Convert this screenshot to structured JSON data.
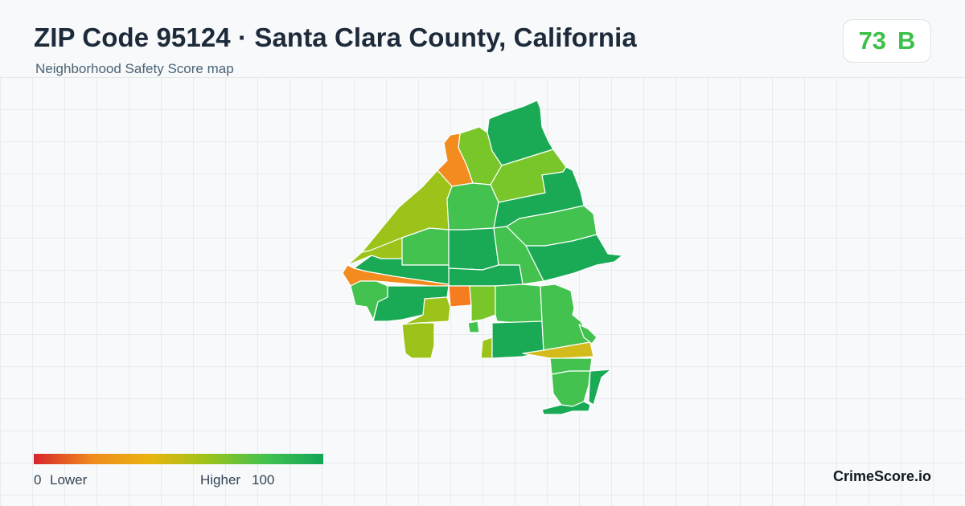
{
  "header": {
    "title": "ZIP Code 95124 · Santa Clara County, California",
    "subtitle": "Neighborhood Safety Score map"
  },
  "score": {
    "value": "73",
    "grade": "B",
    "color": "#3dc04a"
  },
  "legend": {
    "min_value": "0",
    "min_label": "Lower",
    "max_label": "Higher",
    "max_value": "100",
    "colors": [
      "#d7262b",
      "#f08a1e",
      "#e9b40f",
      "#9cc31a",
      "#43c24f",
      "#13a556"
    ]
  },
  "map": {
    "region_colors": {
      "red": "#d7262b",
      "orange": "#f28c1e",
      "dark_orange": "#f57d1f",
      "yellow": "#d2bb1a",
      "yellow_green": "#9cc31a",
      "light_green": "#78c62a",
      "green": "#43c24f",
      "dark_green": "#1aaa55"
    }
  },
  "brand": {
    "name": "CrimeScore.io"
  }
}
